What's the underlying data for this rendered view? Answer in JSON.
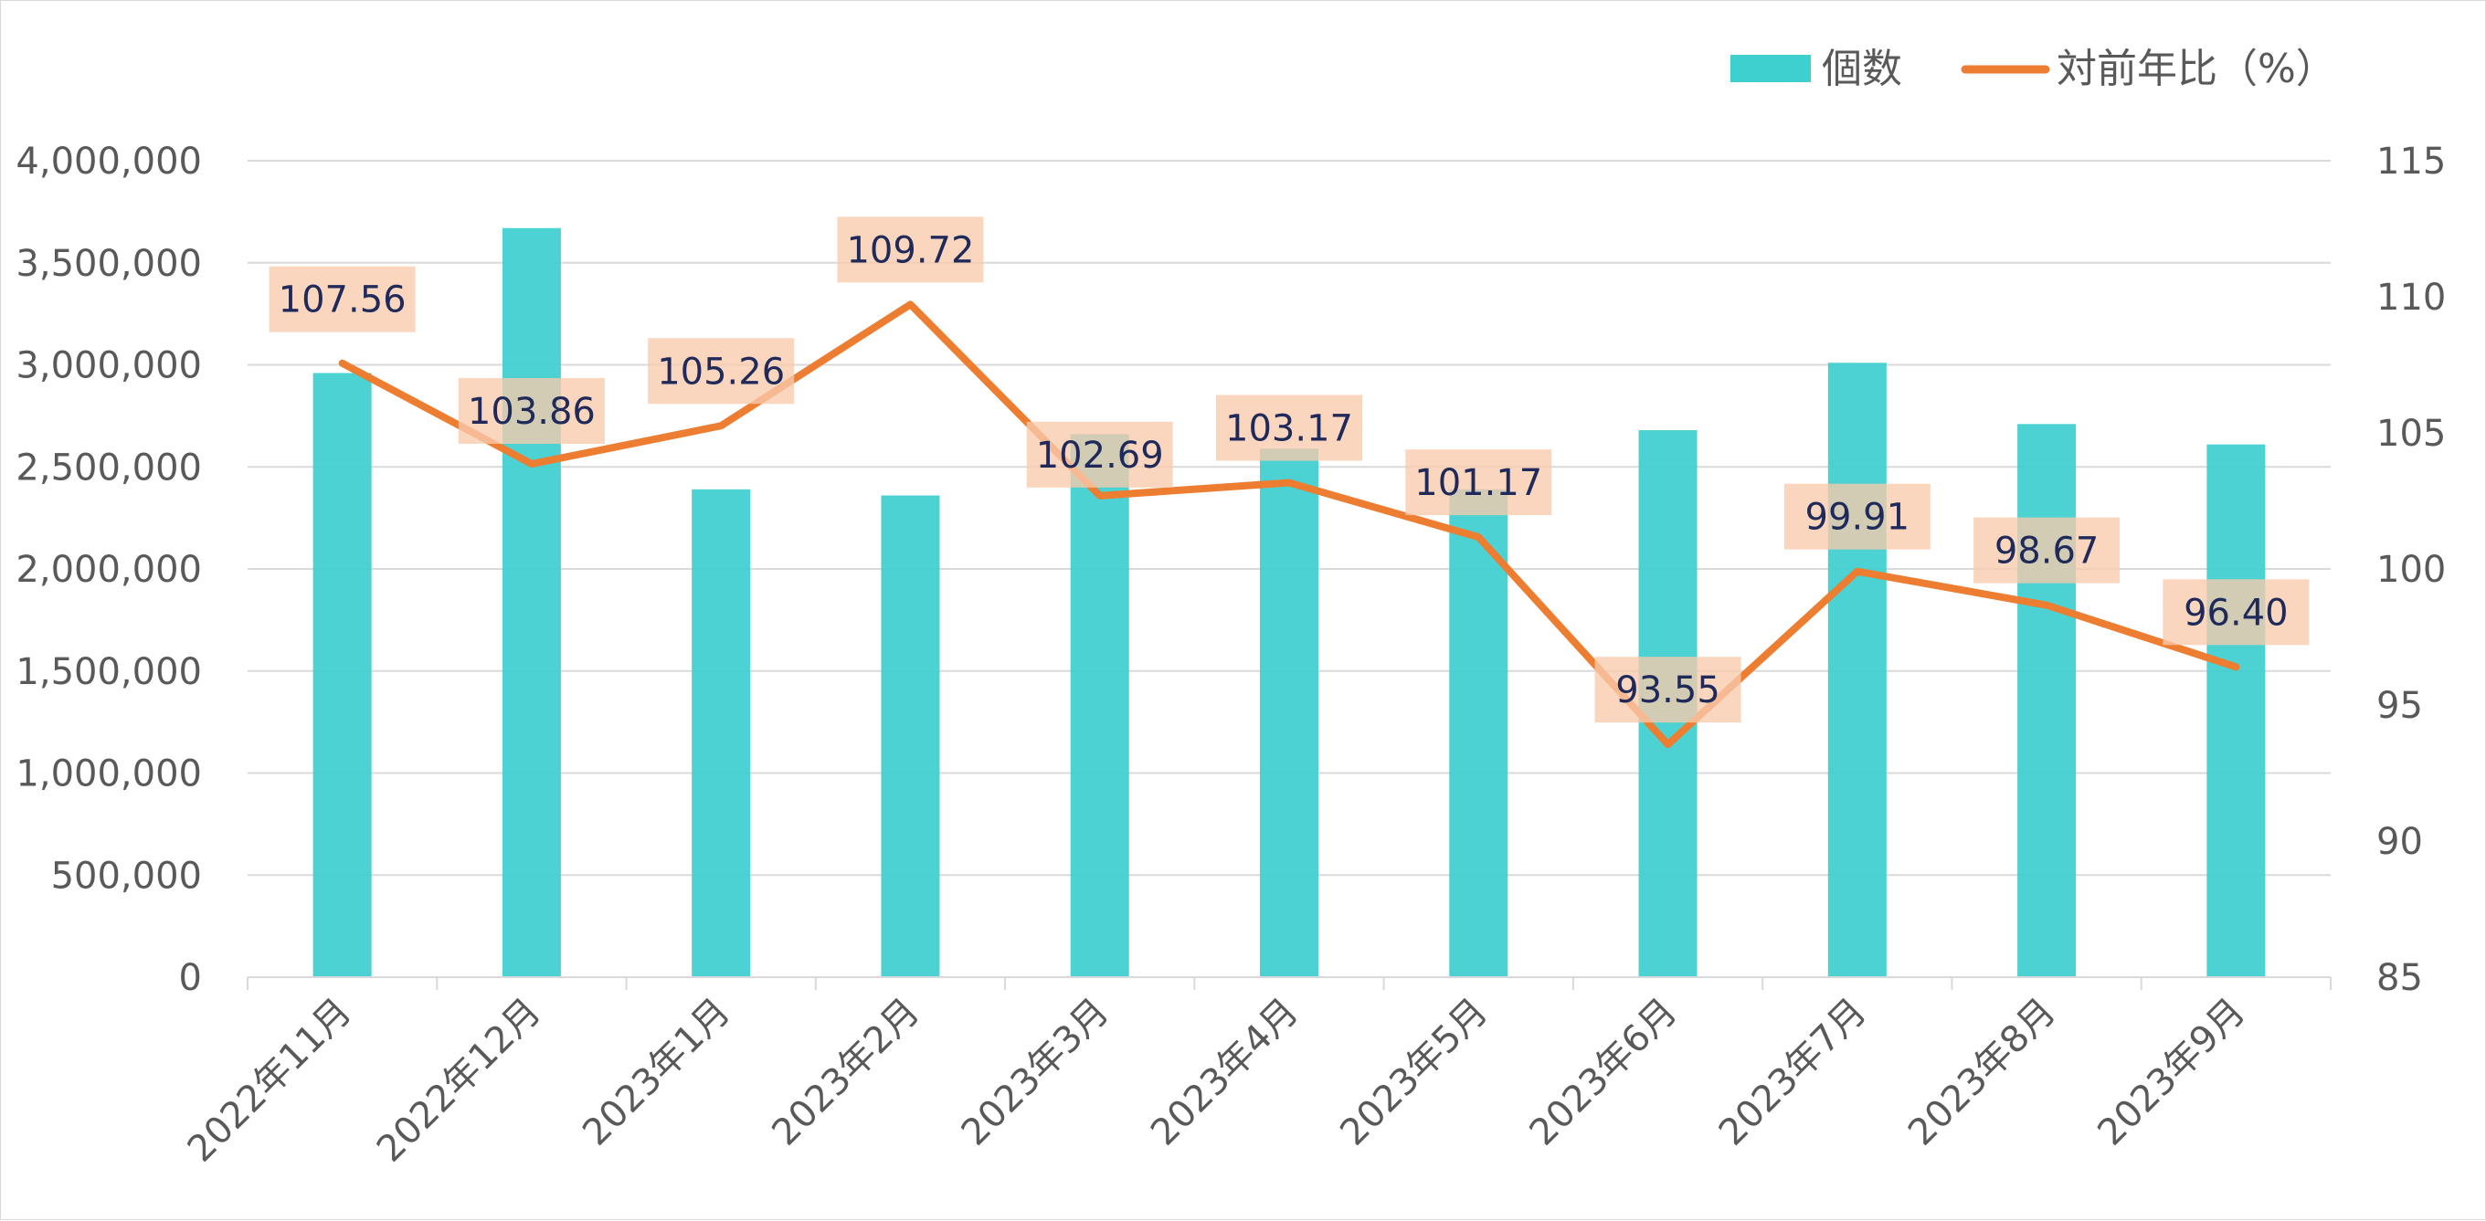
{
  "chart_data": {
    "type": "bar",
    "categories": [
      "2022年11月",
      "2022年12月",
      "2023年1月",
      "2023年2月",
      "2023年3月",
      "2023年4月",
      "2023年5月",
      "2023年6月",
      "2023年7月",
      "2023年8月",
      "2023年9月"
    ],
    "series": [
      {
        "name": "個数",
        "type": "bar",
        "axis": "left",
        "color": "#3ECFCF",
        "values": [
          2960000,
          3670000,
          2390000,
          2360000,
          2660000,
          2590000,
          2390000,
          2680000,
          3010000,
          2710000,
          2610000
        ]
      },
      {
        "name": "対前年比（%）",
        "type": "line",
        "axis": "right",
        "color": "#ED7D31",
        "values": [
          107.56,
          103.86,
          105.26,
          109.72,
          102.69,
          103.17,
          101.17,
          93.55,
          99.91,
          98.67,
          96.4
        ],
        "labels": [
          "107.56",
          "103.86",
          "105.26",
          "109.72",
          "102.69",
          "103.17",
          "101.17",
          "93.55",
          "99.91",
          "98.67",
          "96.40"
        ]
      }
    ],
    "y_left": {
      "ylim": [
        0,
        4000000
      ],
      "ticks": [
        0,
        500000,
        1000000,
        1500000,
        2000000,
        2500000,
        3000000,
        3500000,
        4000000
      ],
      "tick_labels": [
        "0",
        "500,000",
        "1,000,000",
        "1,500,000",
        "2,000,000",
        "2,500,000",
        "3,000,000",
        "3,500,000",
        "4,000,000"
      ]
    },
    "y_right": {
      "ylim": [
        85,
        115
      ],
      "ticks": [
        85,
        90,
        95,
        100,
        105,
        110,
        115
      ],
      "tick_labels": [
        "85",
        "90",
        "95",
        "100",
        "105",
        "110",
        "115"
      ]
    },
    "grid": true,
    "legend": "top-right",
    "label_bg_color": "#F8CBAD"
  }
}
